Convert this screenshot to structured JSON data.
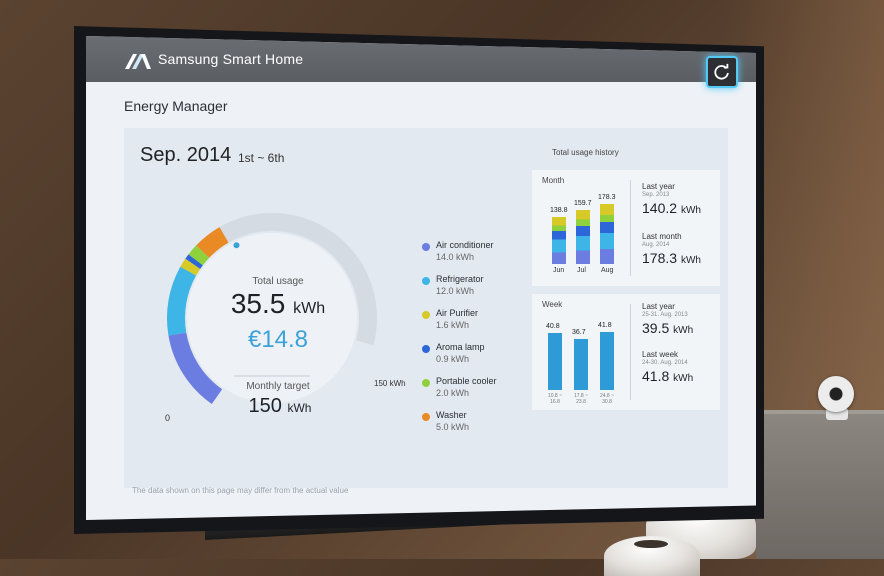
{
  "app": {
    "brand": "Samsung Smart Home",
    "page_title": "Energy Manager",
    "refresh_icon": "refresh-icon",
    "accent": "#3aa2d8"
  },
  "summary": {
    "month": "Sep. 2014",
    "date_range": "1st ~ 6th",
    "total_label": "Total usage",
    "total_value": "35.5",
    "total_unit": "kWh",
    "cost": "€14.8",
    "target_label": "Monthly target",
    "target_value": "150",
    "target_unit": "kWh",
    "gauge_min": "0",
    "gauge_max": "150",
    "gauge_max_unit": "kWh"
  },
  "legend": [
    {
      "name": "Air conditioner",
      "value": "14.0 kWh",
      "color": "#6b7de0"
    },
    {
      "name": "Refrigerator",
      "value": "12.0 kWh",
      "color": "#3db5e6"
    },
    {
      "name": "Air Purifier",
      "value": "1.6 kWh",
      "color": "#d6c928"
    },
    {
      "name": "Aroma lamp",
      "value": "0.9 kWh",
      "color": "#2d66d8"
    },
    {
      "name": "Portable cooler",
      "value": "2.0 kWh",
      "color": "#8fd13c"
    },
    {
      "name": "Washer",
      "value": "5.0 kWh",
      "color": "#ea8a25"
    }
  ],
  "history": {
    "title": "Total usage history",
    "month_label": "Month",
    "week_label": "Week",
    "last_year_label": "Last year",
    "last_month_label": "Last month",
    "last_week_label": "Last week",
    "month_cmp": {
      "last_year_date": "Sep. 2013",
      "last_year_value": "140.2",
      "last_month_date": "Aug. 2014",
      "last_month_value": "178.3",
      "unit": "kWh"
    },
    "week_cmp": {
      "last_year_date": "25-31. Aug. 2013",
      "last_year_value": "39.5",
      "last_week_date": "24-30. Aug. 2014",
      "last_week_value": "41.8",
      "unit": "kWh"
    }
  },
  "chart_data": [
    {
      "type": "bar",
      "title": "Month",
      "categories": [
        "Jun",
        "Jul",
        "Aug"
      ],
      "values": [
        138.8,
        159.7,
        178.3
      ],
      "data_labels": [
        "138.8",
        "159.7",
        "178.3"
      ]
    },
    {
      "type": "bar",
      "title": "Week",
      "categories": [
        "10.8 ~ 16.8",
        "17.8 ~ 23.8",
        "24.8 ~ 30.8"
      ],
      "values": [
        40.8,
        36.7,
        41.8
      ],
      "data_labels": [
        "40.8",
        "36.7",
        "41.8"
      ]
    },
    {
      "type": "pie",
      "title": "Total usage",
      "categories": [
        "Air conditioner",
        "Refrigerator",
        "Air Purifier",
        "Aroma lamp",
        "Portable cooler",
        "Washer"
      ],
      "values": [
        14.0,
        12.0,
        1.6,
        0.9,
        2.0,
        5.0
      ],
      "total": 35.5,
      "target": 150
    }
  ],
  "disclaimer": "The data shown on this page may differ from the actual value"
}
